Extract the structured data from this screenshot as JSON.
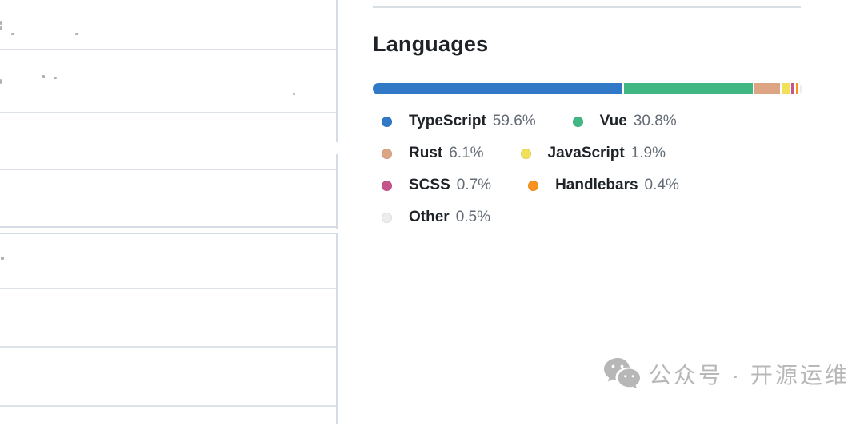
{
  "languages_section": {
    "title": "Languages",
    "items": [
      {
        "name": "TypeScript",
        "percent": "59.6%",
        "value": 59.6,
        "color": "#3178c6"
      },
      {
        "name": "Vue",
        "percent": "30.8%",
        "value": 30.8,
        "color": "#41b883"
      },
      {
        "name": "Rust",
        "percent": "6.1%",
        "value": 6.1,
        "color": "#dea584"
      },
      {
        "name": "JavaScript",
        "percent": "1.9%",
        "value": 1.9,
        "color": "#f1e05a"
      },
      {
        "name": "SCSS",
        "percent": "0.7%",
        "value": 0.7,
        "color": "#c6538c"
      },
      {
        "name": "Handlebars",
        "percent": "0.4%",
        "value": 0.4,
        "color": "#f7931e"
      },
      {
        "name": "Other",
        "percent": "0.5%",
        "value": 0.5,
        "color": "#ededed"
      }
    ]
  },
  "chart_data": {
    "type": "bar",
    "subtype": "stacked-percentage-horizontal",
    "title": "Languages",
    "categories": [
      "TypeScript",
      "Vue",
      "Rust",
      "JavaScript",
      "SCSS",
      "Handlebars",
      "Other"
    ],
    "values": [
      59.6,
      30.8,
      6.1,
      1.9,
      0.7,
      0.4,
      0.5
    ],
    "colors": [
      "#3178c6",
      "#41b883",
      "#dea584",
      "#f1e05a",
      "#c6538c",
      "#f7931e",
      "#ededed"
    ],
    "xlabel": "",
    "ylabel": "",
    "xlim": [
      0,
      100
    ],
    "legend_position": "below-bar",
    "grid": false
  },
  "watermark": {
    "text": "公众号 · 开源运维",
    "icon": "wechat-icon",
    "color": "#b7b7b7"
  }
}
